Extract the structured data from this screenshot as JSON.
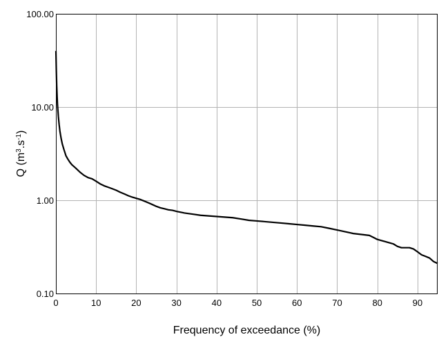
{
  "chart_data": {
    "type": "line",
    "title": "",
    "xlabel": "Frequency of exceedance (%)",
    "ylabel": {
      "prefix": "Q (m",
      "unit_a_sup": "3",
      "middle": ".s",
      "unit_b_sup": "-1",
      "suffix": ")"
    },
    "x_scale": "linear",
    "y_scale": "log",
    "xlim": [
      0,
      95
    ],
    "ylim": [
      0.1,
      100
    ],
    "x_ticks": [
      0,
      10,
      20,
      30,
      40,
      50,
      60,
      70,
      80,
      90
    ],
    "x_tick_labels": [
      "0",
      "10",
      "20",
      "30",
      "40",
      "50",
      "60",
      "70",
      "80",
      "90"
    ],
    "y_ticks": [
      0.1,
      1,
      10,
      100
    ],
    "y_tick_labels": [
      "0.10",
      "1.00",
      "10.00",
      "100.00"
    ],
    "grid": true,
    "legend": "none",
    "series": [
      {
        "color": "#000000",
        "x": [
          0,
          0.1,
          0.2,
          0.3,
          0.4,
          0.6,
          0.8,
          1.0,
          1.3,
          1.6,
          2.0,
          2.5,
          3.0,
          3.5,
          4.0,
          4.5,
          5.0,
          6.0,
          7.0,
          8.0,
          9.0,
          10.0,
          11.0,
          12.0,
          13.0,
          14.0,
          15.0,
          16.0,
          17.0,
          18.0,
          19.0,
          20.0,
          21.0,
          22.0,
          23.0,
          24.0,
          25.0,
          26.0,
          27.0,
          28.0,
          29.0,
          30.0,
          32.0,
          34.0,
          36.0,
          38.0,
          40.0,
          42.0,
          44.0,
          46.0,
          48.0,
          50.0,
          52.0,
          54.0,
          56.0,
          58.0,
          60.0,
          62.0,
          64.0,
          66.0,
          68.0,
          70.0,
          72.0,
          74.0,
          76.0,
          78.0,
          79.0,
          80.0,
          81.0,
          82.0,
          83.0,
          84.0,
          85.0,
          86.0,
          87.0,
          88.0,
          89.0,
          90.0,
          91.0,
          92.0,
          93.0,
          94.0,
          95.0
        ],
        "y": [
          40,
          25,
          17,
          13,
          10.5,
          8,
          6.5,
          5.5,
          4.6,
          4.0,
          3.5,
          3.0,
          2.75,
          2.55,
          2.4,
          2.3,
          2.2,
          2.0,
          1.85,
          1.75,
          1.7,
          1.6,
          1.5,
          1.43,
          1.38,
          1.33,
          1.28,
          1.22,
          1.17,
          1.12,
          1.08,
          1.05,
          1.02,
          0.98,
          0.94,
          0.9,
          0.86,
          0.83,
          0.81,
          0.79,
          0.78,
          0.76,
          0.73,
          0.71,
          0.69,
          0.68,
          0.67,
          0.66,
          0.65,
          0.63,
          0.61,
          0.6,
          0.59,
          0.58,
          0.57,
          0.56,
          0.55,
          0.54,
          0.53,
          0.52,
          0.5,
          0.48,
          0.46,
          0.44,
          0.43,
          0.42,
          0.4,
          0.38,
          0.37,
          0.36,
          0.35,
          0.34,
          0.32,
          0.31,
          0.31,
          0.31,
          0.3,
          0.28,
          0.26,
          0.25,
          0.24,
          0.22,
          0.21
        ]
      }
    ]
  }
}
